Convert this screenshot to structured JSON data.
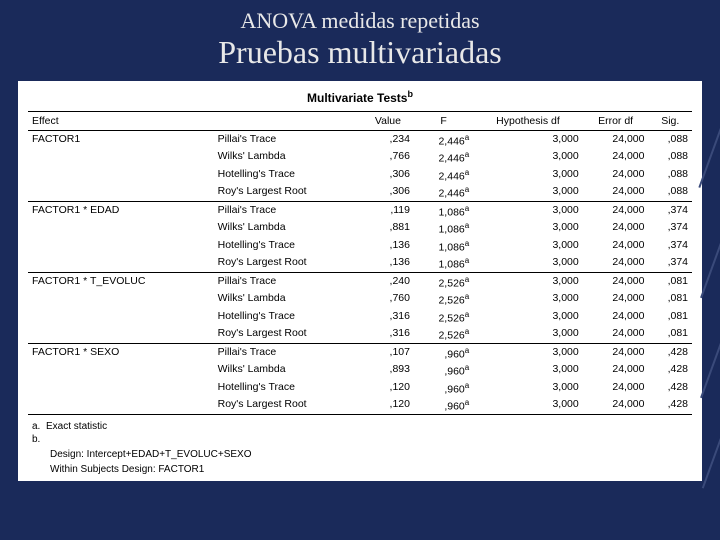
{
  "header": {
    "subtitle": "ANOVA medidas repetidas",
    "title": "Pruebas multivariadas"
  },
  "table": {
    "caption": "Multivariate Tests",
    "caption_sup": "b",
    "columns": [
      "Effect",
      "",
      "Value",
      "F",
      "Hypothesis df",
      "Error df",
      "Sig."
    ],
    "tests": [
      "Pillai's Trace",
      "Wilks' Lambda",
      "Hotelling's Trace",
      "Roy's Largest Root"
    ],
    "groups": [
      {
        "effect": "FACTOR1",
        "rows": [
          {
            "value": ",234",
            "f": "2,446",
            "fsup": "a",
            "hdf": "3,000",
            "edf": "24,000",
            "sig": ",088"
          },
          {
            "value": ",766",
            "f": "2,446",
            "fsup": "a",
            "hdf": "3,000",
            "edf": "24,000",
            "sig": ",088"
          },
          {
            "value": ",306",
            "f": "2,446",
            "fsup": "a",
            "hdf": "3,000",
            "edf": "24,000",
            "sig": ",088"
          },
          {
            "value": ",306",
            "f": "2,446",
            "fsup": "a",
            "hdf": "3,000",
            "edf": "24,000",
            "sig": ",088"
          }
        ]
      },
      {
        "effect": "FACTOR1 * EDAD",
        "rows": [
          {
            "value": ",119",
            "f": "1,086",
            "fsup": "a",
            "hdf": "3,000",
            "edf": "24,000",
            "sig": ",374"
          },
          {
            "value": ",881",
            "f": "1,086",
            "fsup": "a",
            "hdf": "3,000",
            "edf": "24,000",
            "sig": ",374"
          },
          {
            "value": ",136",
            "f": "1,086",
            "fsup": "a",
            "hdf": "3,000",
            "edf": "24,000",
            "sig": ",374"
          },
          {
            "value": ",136",
            "f": "1,086",
            "fsup": "a",
            "hdf": "3,000",
            "edf": "24,000",
            "sig": ",374"
          }
        ]
      },
      {
        "effect": "FACTOR1 * T_EVOLUC",
        "rows": [
          {
            "value": ",240",
            "f": "2,526",
            "fsup": "a",
            "hdf": "3,000",
            "edf": "24,000",
            "sig": ",081"
          },
          {
            "value": ",760",
            "f": "2,526",
            "fsup": "a",
            "hdf": "3,000",
            "edf": "24,000",
            "sig": ",081"
          },
          {
            "value": ",316",
            "f": "2,526",
            "fsup": "a",
            "hdf": "3,000",
            "edf": "24,000",
            "sig": ",081"
          },
          {
            "value": ",316",
            "f": "2,526",
            "fsup": "a",
            "hdf": "3,000",
            "edf": "24,000",
            "sig": ",081"
          }
        ]
      },
      {
        "effect": "FACTOR1 * SEXO",
        "rows": [
          {
            "value": ",107",
            "f": ",960",
            "fsup": "a",
            "hdf": "3,000",
            "edf": "24,000",
            "sig": ",428"
          },
          {
            "value": ",893",
            "f": ",960",
            "fsup": "a",
            "hdf": "3,000",
            "edf": "24,000",
            "sig": ",428"
          },
          {
            "value": ",120",
            "f": ",960",
            "fsup": "a",
            "hdf": "3,000",
            "edf": "24,000",
            "sig": ",428"
          },
          {
            "value": ",120",
            "f": ",960",
            "fsup": "a",
            "hdf": "3,000",
            "edf": "24,000",
            "sig": ",428"
          }
        ]
      }
    ]
  },
  "footnotes": {
    "a": "Exact statistic",
    "b": "",
    "design1": "Design: Intercept+EDAD+T_EVOLUC+SEXO",
    "design2": "Within Subjects Design: FACTOR1"
  }
}
